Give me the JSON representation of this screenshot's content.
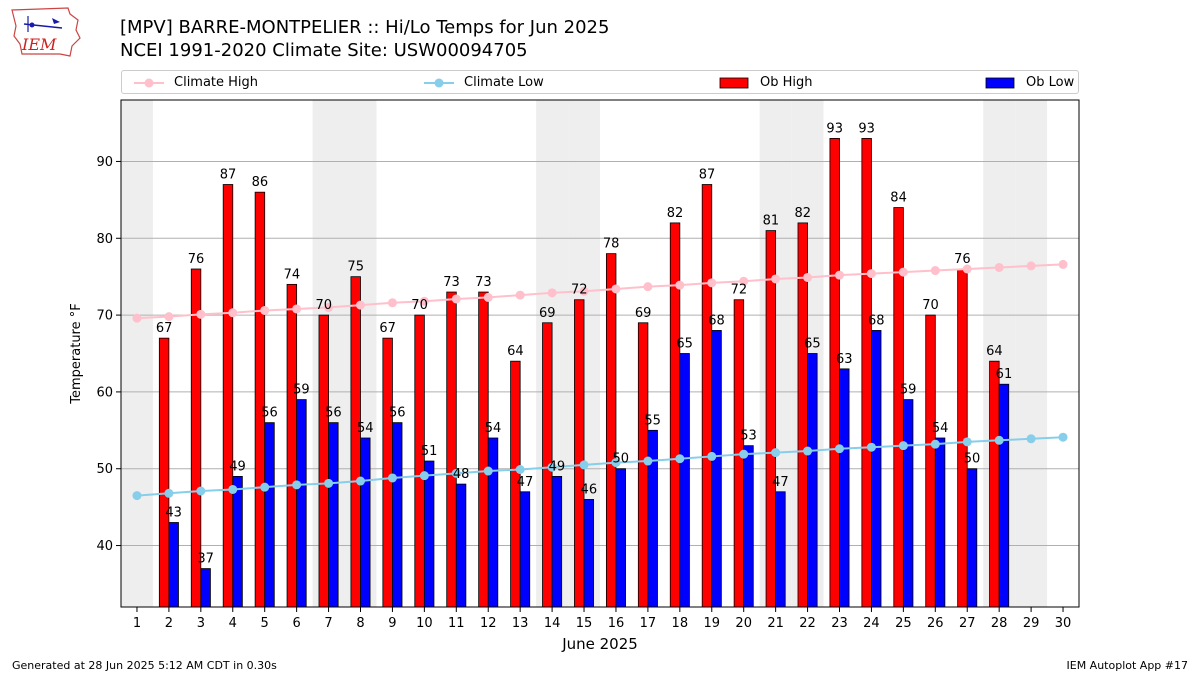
{
  "header": {
    "title_line1": "[MPV] BARRE-MONTPELIER :: Hi/Lo Temps for Jun 2025",
    "title_line2": "NCEI 1991-2020 Climate Site: USW00094705",
    "logo_text": "IEM"
  },
  "footer": {
    "left": "Generated at 28 Jun 2025 5:12 AM CDT in 0.30s",
    "right": "IEM Autoplot App #17"
  },
  "colors": {
    "ob_high": "#ff0000",
    "ob_low": "#0000ff",
    "climate_high": "#ffc0cb",
    "climate_low": "#87ceeb",
    "weekend_shade": "#eeeeee",
    "grid": "#b0b0b0"
  },
  "chart_data": {
    "type": "bar",
    "xlabel": "June 2025",
    "ylabel": "Temperature °F",
    "xlim": [
      0.5,
      30.5
    ],
    "ylim": [
      32,
      98
    ],
    "yticks": [
      40,
      50,
      60,
      70,
      80,
      90
    ],
    "grid": "horizontal",
    "legend_position": "top",
    "shaded_days": [
      1,
      7,
      8,
      14,
      15,
      21,
      22,
      28,
      29
    ],
    "days": [
      1,
      2,
      3,
      4,
      5,
      6,
      7,
      8,
      9,
      10,
      11,
      12,
      13,
      14,
      15,
      16,
      17,
      18,
      19,
      20,
      21,
      22,
      23,
      24,
      25,
      26,
      27,
      28,
      29,
      30
    ],
    "series": [
      {
        "name": "Climate High",
        "kind": "line",
        "values": [
          69.6,
          69.8,
          70.1,
          70.3,
          70.6,
          70.8,
          71.0,
          71.3,
          71.6,
          71.8,
          72.1,
          72.3,
          72.6,
          72.9,
          73.1,
          73.4,
          73.7,
          73.9,
          74.2,
          74.4,
          74.7,
          74.9,
          75.2,
          75.4,
          75.6,
          75.8,
          76.0,
          76.2,
          76.4,
          76.6
        ]
      },
      {
        "name": "Climate Low",
        "kind": "line",
        "values": [
          46.5,
          46.8,
          47.1,
          47.3,
          47.6,
          47.9,
          48.1,
          48.4,
          48.8,
          49.1,
          49.4,
          49.7,
          49.9,
          50.2,
          50.5,
          50.8,
          51.0,
          51.3,
          51.6,
          51.9,
          52.1,
          52.3,
          52.6,
          52.8,
          53.0,
          53.2,
          53.5,
          53.7,
          53.9,
          54.1
        ]
      },
      {
        "name": "Ob High",
        "kind": "bar",
        "values": [
          null,
          67,
          76,
          87,
          86,
          74,
          70,
          75,
          67,
          70,
          73,
          73,
          64,
          69,
          72,
          78,
          69,
          82,
          87,
          72,
          81,
          82,
          93,
          93,
          84,
          70,
          76,
          64,
          null,
          null
        ]
      },
      {
        "name": "Ob Low",
        "kind": "bar",
        "values": [
          null,
          43,
          37,
          49,
          56,
          59,
          56,
          54,
          56,
          51,
          48,
          54,
          47,
          49,
          46,
          50,
          55,
          65,
          68,
          53,
          47,
          65,
          63,
          68,
          59,
          54,
          50,
          61,
          null,
          null
        ]
      }
    ]
  }
}
